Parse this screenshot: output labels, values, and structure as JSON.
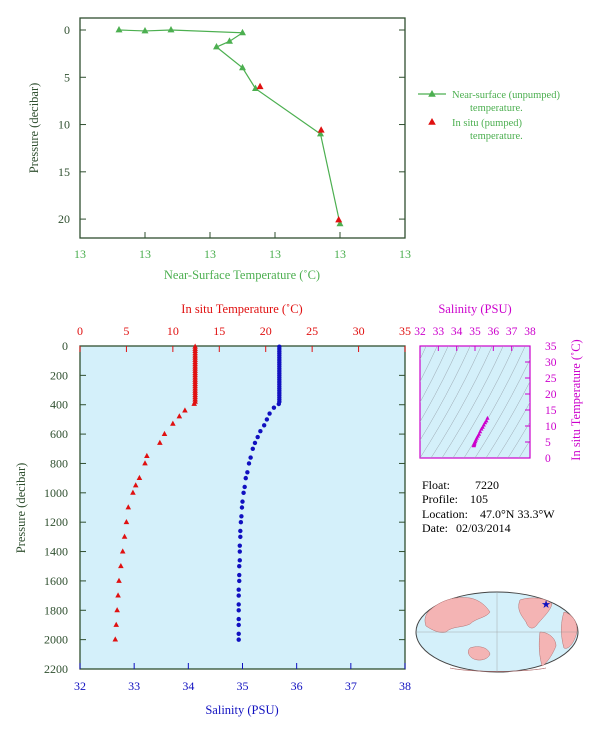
{
  "colors": {
    "green": "#4caf50",
    "dark_green": "#2f4f2f",
    "red": "#e01010",
    "blue": "#1010c0",
    "magenta": "#cc00cc",
    "ocean": "#d4f0fa",
    "land": "#f4b4b4"
  },
  "chart_data": [
    {
      "id": "near_surface",
      "type": "line",
      "xlabel": "Near-Surface Temperature (˚C)",
      "ylabel": "Pressure (decibar)",
      "x_tick_labels": [
        "13",
        "13",
        "13",
        "13",
        "13",
        "13"
      ],
      "y_ticks": [
        0,
        5,
        10,
        15,
        20
      ],
      "ylim": [
        0,
        22
      ],
      "xlim": [
        12.85,
        13.35
      ],
      "series": [
        {
          "name": "Near-surface (unpumped) temperature.",
          "marker": "triangle",
          "color": "#4caf50",
          "points": [
            {
              "x": 12.91,
              "y": 0.0
            },
            {
              "x": 12.95,
              "y": 0.1
            },
            {
              "x": 12.99,
              "y": 0.0
            },
            {
              "x": 13.1,
              "y": 0.3
            },
            {
              "x": 13.08,
              "y": 1.2
            },
            {
              "x": 13.06,
              "y": 1.8
            },
            {
              "x": 13.1,
              "y": 4.0
            },
            {
              "x": 13.12,
              "y": 6.2
            },
            {
              "x": 13.22,
              "y": 11.0
            },
            {
              "x": 13.25,
              "y": 20.5
            }
          ]
        },
        {
          "name": "In situ (pumped) temperature.",
          "marker": "triangle",
          "color": "#e01010",
          "points": [
            {
              "x": 13.127,
              "y": 6.0
            },
            {
              "x": 13.221,
              "y": 10.6
            },
            {
              "x": 13.248,
              "y": 20.1
            }
          ]
        }
      ]
    },
    {
      "id": "profile",
      "type": "scatter",
      "title_top": "In situ Temperature (˚C)",
      "xlabel_bottom": "Salinity (PSU)",
      "ylabel": "Pressure (decibar)",
      "temp_ticks": [
        0,
        5,
        10,
        15,
        20,
        25,
        30,
        35
      ],
      "temp_range": [
        0,
        35
      ],
      "sal_ticks": [
        32,
        33,
        34,
        35,
        36,
        37,
        38
      ],
      "sal_range": [
        32,
        38
      ],
      "pressure_ticks": [
        0,
        200,
        400,
        600,
        800,
        1000,
        1200,
        1400,
        1600,
        1800,
        2000,
        2200
      ],
      "pressure_range": [
        0,
        2200
      ],
      "temperature": {
        "marker": "triangle",
        "color": "#e01010",
        "points": [
          {
            "t": 12.4,
            "p": 5
          },
          {
            "t": 12.4,
            "p": 20
          },
          {
            "t": 12.4,
            "p": 35
          },
          {
            "t": 12.4,
            "p": 50
          },
          {
            "t": 12.4,
            "p": 65
          },
          {
            "t": 12.4,
            "p": 80
          },
          {
            "t": 12.4,
            "p": 95
          },
          {
            "t": 12.4,
            "p": 110
          },
          {
            "t": 12.4,
            "p": 125
          },
          {
            "t": 12.4,
            "p": 140
          },
          {
            "t": 12.4,
            "p": 155
          },
          {
            "t": 12.4,
            "p": 170
          },
          {
            "t": 12.4,
            "p": 185
          },
          {
            "t": 12.4,
            "p": 200
          },
          {
            "t": 12.4,
            "p": 215
          },
          {
            "t": 12.4,
            "p": 230
          },
          {
            "t": 12.4,
            "p": 245
          },
          {
            "t": 12.4,
            "p": 260
          },
          {
            "t": 12.4,
            "p": 275
          },
          {
            "t": 12.4,
            "p": 290
          },
          {
            "t": 12.4,
            "p": 305
          },
          {
            "t": 12.4,
            "p": 320
          },
          {
            "t": 12.4,
            "p": 335
          },
          {
            "t": 12.4,
            "p": 350
          },
          {
            "t": 12.4,
            "p": 365
          },
          {
            "t": 12.4,
            "p": 380
          },
          {
            "t": 12.3,
            "p": 395
          },
          {
            "t": 11.3,
            "p": 440
          },
          {
            "t": 10.7,
            "p": 480
          },
          {
            "t": 10.0,
            "p": 530
          },
          {
            "t": 9.1,
            "p": 600
          },
          {
            "t": 8.6,
            "p": 660
          },
          {
            "t": 7.2,
            "p": 750
          },
          {
            "t": 7.0,
            "p": 800
          },
          {
            "t": 6.4,
            "p": 900
          },
          {
            "t": 6.0,
            "p": 950
          },
          {
            "t": 5.7,
            "p": 1000
          },
          {
            "t": 5.2,
            "p": 1100
          },
          {
            "t": 5.0,
            "p": 1200
          },
          {
            "t": 4.8,
            "p": 1300
          },
          {
            "t": 4.6,
            "p": 1400
          },
          {
            "t": 4.4,
            "p": 1500
          },
          {
            "t": 4.2,
            "p": 1600
          },
          {
            "t": 4.1,
            "p": 1700
          },
          {
            "t": 4.0,
            "p": 1800
          },
          {
            "t": 3.9,
            "p": 1900
          },
          {
            "t": 3.8,
            "p": 2000
          }
        ]
      },
      "salinity": {
        "marker": "circle",
        "color": "#1010c0",
        "points": [
          {
            "s": 35.68,
            "p": 5
          },
          {
            "s": 35.68,
            "p": 20
          },
          {
            "s": 35.68,
            "p": 35
          },
          {
            "s": 35.68,
            "p": 50
          },
          {
            "s": 35.68,
            "p": 65
          },
          {
            "s": 35.68,
            "p": 80
          },
          {
            "s": 35.68,
            "p": 95
          },
          {
            "s": 35.68,
            "p": 110
          },
          {
            "s": 35.68,
            "p": 125
          },
          {
            "s": 35.68,
            "p": 140
          },
          {
            "s": 35.68,
            "p": 155
          },
          {
            "s": 35.68,
            "p": 170
          },
          {
            "s": 35.68,
            "p": 185
          },
          {
            "s": 35.68,
            "p": 200
          },
          {
            "s": 35.68,
            "p": 215
          },
          {
            "s": 35.68,
            "p": 230
          },
          {
            "s": 35.68,
            "p": 245
          },
          {
            "s": 35.68,
            "p": 260
          },
          {
            "s": 35.68,
            "p": 275
          },
          {
            "s": 35.68,
            "p": 290
          },
          {
            "s": 35.68,
            "p": 305
          },
          {
            "s": 35.68,
            "p": 320
          },
          {
            "s": 35.68,
            "p": 335
          },
          {
            "s": 35.68,
            "p": 350
          },
          {
            "s": 35.68,
            "p": 365
          },
          {
            "s": 35.68,
            "p": 380
          },
          {
            "s": 35.67,
            "p": 395
          },
          {
            "s": 35.58,
            "p": 420
          },
          {
            "s": 35.5,
            "p": 460
          },
          {
            "s": 35.45,
            "p": 500
          },
          {
            "s": 35.4,
            "p": 540
          },
          {
            "s": 35.33,
            "p": 580
          },
          {
            "s": 35.28,
            "p": 620
          },
          {
            "s": 35.23,
            "p": 660
          },
          {
            "s": 35.19,
            "p": 700
          },
          {
            "s": 35.15,
            "p": 760
          },
          {
            "s": 35.12,
            "p": 800
          },
          {
            "s": 35.09,
            "p": 860
          },
          {
            "s": 35.06,
            "p": 900
          },
          {
            "s": 35.04,
            "p": 960
          },
          {
            "s": 35.02,
            "p": 1000
          },
          {
            "s": 35.0,
            "p": 1060
          },
          {
            "s": 34.99,
            "p": 1100
          },
          {
            "s": 34.98,
            "p": 1160
          },
          {
            "s": 34.97,
            "p": 1200
          },
          {
            "s": 34.96,
            "p": 1260
          },
          {
            "s": 34.96,
            "p": 1300
          },
          {
            "s": 34.95,
            "p": 1360
          },
          {
            "s": 34.95,
            "p": 1400
          },
          {
            "s": 34.95,
            "p": 1460
          },
          {
            "s": 34.94,
            "p": 1500
          },
          {
            "s": 34.94,
            "p": 1560
          },
          {
            "s": 34.94,
            "p": 1600
          },
          {
            "s": 34.93,
            "p": 1660
          },
          {
            "s": 34.93,
            "p": 1700
          },
          {
            "s": 34.93,
            "p": 1760
          },
          {
            "s": 34.93,
            "p": 1800
          },
          {
            "s": 34.93,
            "p": 1860
          },
          {
            "s": 34.93,
            "p": 1900
          },
          {
            "s": 34.93,
            "p": 1960
          },
          {
            "s": 34.93,
            "p": 2000
          }
        ]
      }
    },
    {
      "id": "ts_diagram",
      "type": "scatter",
      "title_top": "Salinity (PSU)",
      "ylabel_right": "In situ Temperature (˚C)",
      "sal_ticks": [
        32,
        33,
        34,
        35,
        36,
        37,
        38
      ],
      "sal_range": [
        32,
        38
      ],
      "temp_ticks": [
        0,
        5,
        10,
        15,
        20,
        25,
        30,
        35
      ],
      "temp_range": [
        0,
        35
      ],
      "points": [
        {
          "s": 35.68,
          "t": 12.4
        },
        {
          "s": 35.62,
          "t": 11.6
        },
        {
          "s": 35.55,
          "t": 11.0
        },
        {
          "s": 35.48,
          "t": 10.3
        },
        {
          "s": 35.42,
          "t": 9.6
        },
        {
          "s": 35.35,
          "t": 9.0
        },
        {
          "s": 35.28,
          "t": 8.2
        },
        {
          "s": 35.22,
          "t": 7.4
        },
        {
          "s": 35.16,
          "t": 6.8
        },
        {
          "s": 35.1,
          "t": 6.2
        },
        {
          "s": 35.05,
          "t": 5.6
        },
        {
          "s": 35.01,
          "t": 5.1
        },
        {
          "s": 34.98,
          "t": 4.7
        },
        {
          "s": 34.96,
          "t": 4.4
        },
        {
          "s": 34.95,
          "t": 4.2
        },
        {
          "s": 34.94,
          "t": 4.0
        },
        {
          "s": 34.93,
          "t": 3.9
        },
        {
          "s": 34.93,
          "t": 3.8
        }
      ]
    }
  ],
  "info": {
    "float_label": "Float:",
    "float": "7220",
    "profile_label": "Profile:",
    "profile": "105",
    "location_label": "Location:",
    "location": "47.0°N  33.3°W",
    "date_label": "Date:",
    "date": "02/03/2014"
  },
  "map": {
    "float_lat": 47.0,
    "float_lon": -33.3
  }
}
